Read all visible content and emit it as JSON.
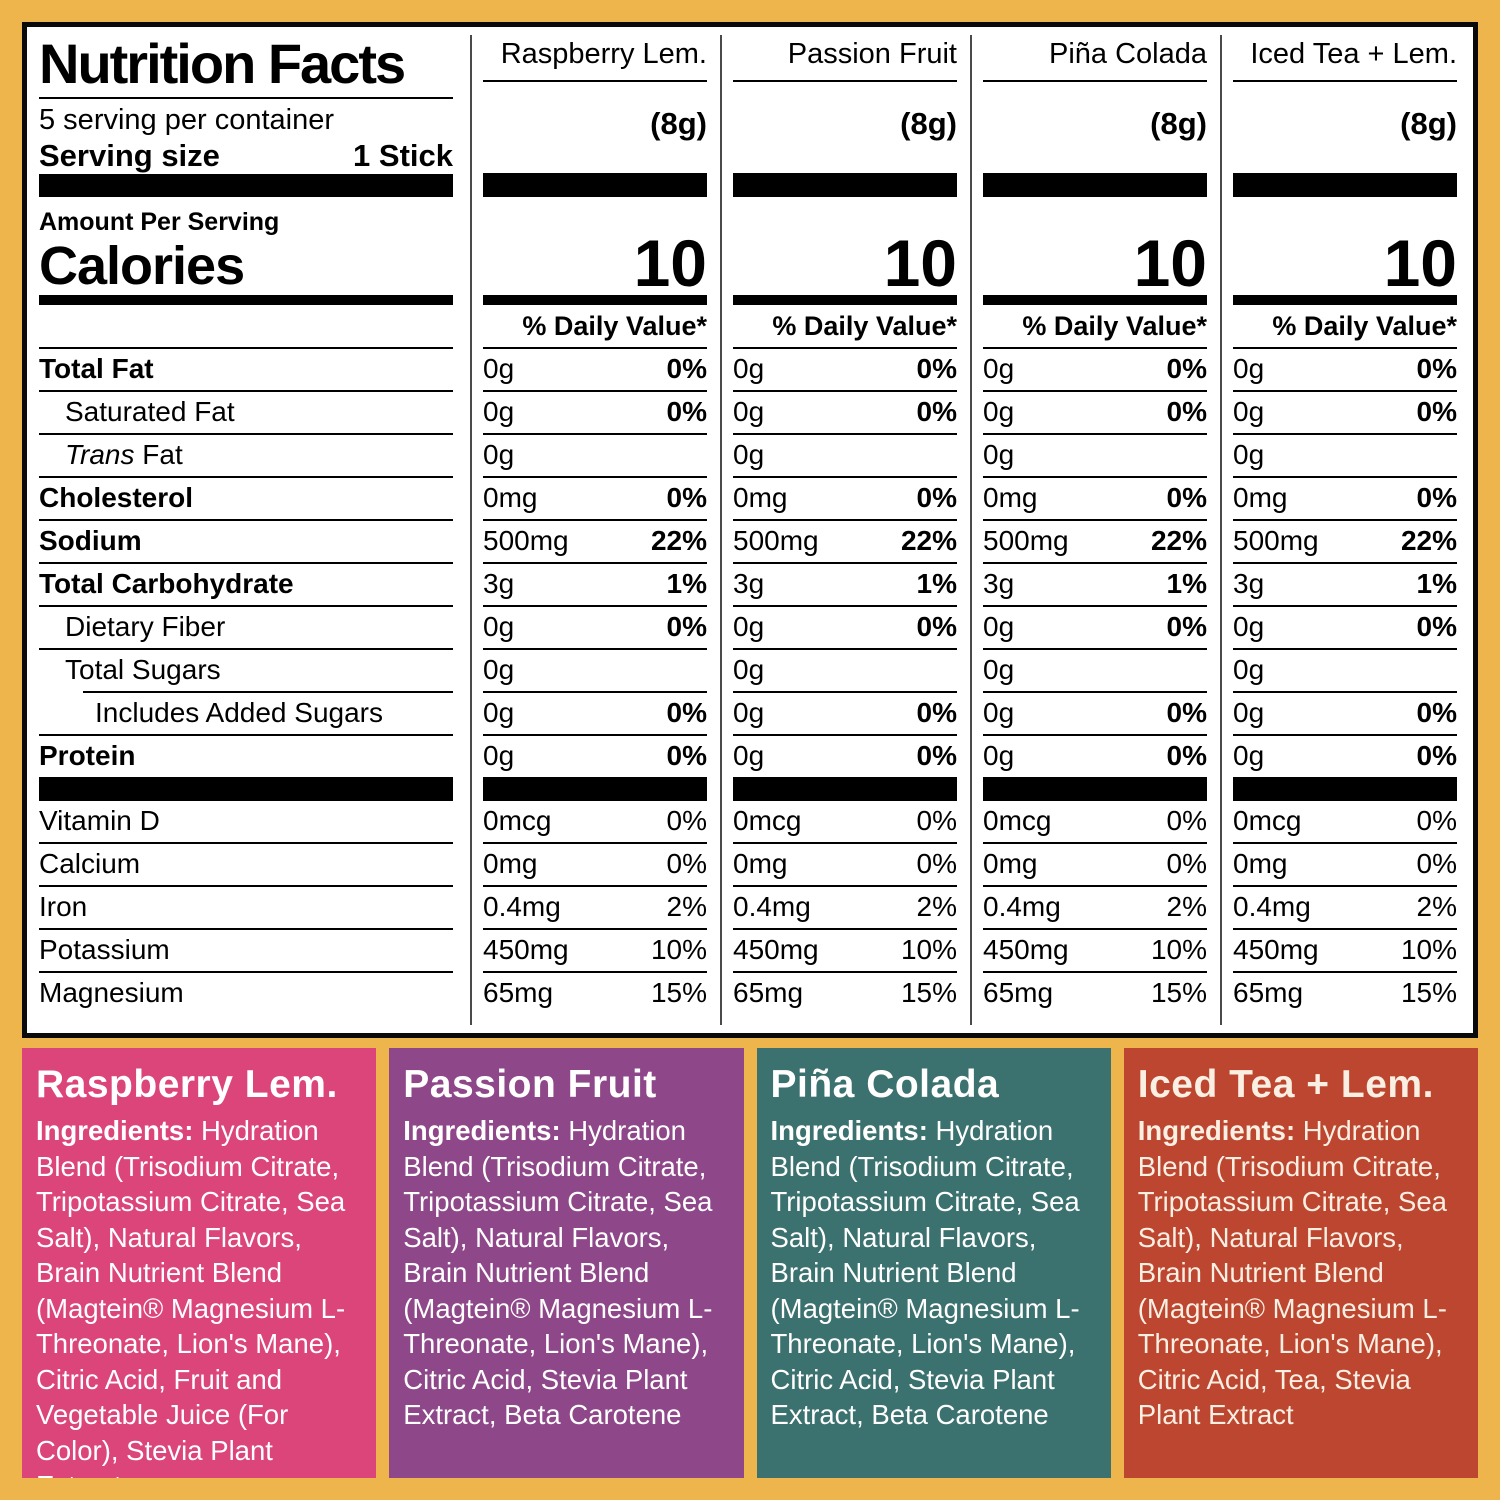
{
  "frame": {
    "background": "#EDB54C"
  },
  "nutrition_facts": {
    "title": "Nutrition Facts",
    "servings_per_container": "5 serving per container",
    "serving_size_label": "Serving size",
    "serving_size_value": "1 Stick",
    "amount_per_serving": "Amount Per Serving",
    "calories_label": "Calories",
    "daily_value_header": "% Daily Value*",
    "columns": [
      {
        "flavor": "Raspberry Lem.",
        "serving_weight": "(8g)",
        "calories": "10"
      },
      {
        "flavor": "Passion Fruit",
        "serving_weight": "(8g)",
        "calories": "10"
      },
      {
        "flavor": "Piña Colada",
        "serving_weight": "(8g)",
        "calories": "10"
      },
      {
        "flavor": "Iced Tea + Lem.",
        "serving_weight": "(8g)",
        "calories": "10"
      }
    ],
    "rows": [
      {
        "label": "Total Fat",
        "bold": true,
        "indent": 0,
        "amount": "0g",
        "dv": "0%"
      },
      {
        "label": "Saturated Fat",
        "bold": false,
        "indent": 1,
        "amount": "0g",
        "dv": "0%"
      },
      {
        "label": " Fat",
        "italic_prefix": "Trans",
        "bold": false,
        "indent": 1,
        "amount": "0g",
        "dv": ""
      },
      {
        "label": "Cholesterol",
        "bold": true,
        "indent": 0,
        "amount": "0mg",
        "dv": "0%"
      },
      {
        "label": "Sodium",
        "bold": true,
        "indent": 0,
        "amount": "500mg",
        "dv": "22%"
      },
      {
        "label": "Total Carbohydrate",
        "bold": true,
        "indent": 0,
        "amount": "3g",
        "dv": "1%"
      },
      {
        "label": "Dietary Fiber",
        "bold": false,
        "indent": 1,
        "amount": "0g",
        "dv": "0%"
      },
      {
        "label": "Total Sugars",
        "bold": false,
        "indent": 1,
        "amount": "0g",
        "dv": "",
        "rule_inset": true
      },
      {
        "label": "Includes Added Sugars",
        "bold": false,
        "indent": 2,
        "amount": "0g",
        "dv": "0%"
      },
      {
        "label": "Protein",
        "bold": true,
        "indent": 0,
        "amount": "0g",
        "dv": "0%"
      }
    ],
    "vitamin_rows": [
      {
        "label": "Vitamin D",
        "amount": "0mcg",
        "dv": "0%"
      },
      {
        "label": "Calcium",
        "amount": "0mg",
        "dv": "0%"
      },
      {
        "label": "Iron",
        "amount": "0.4mg",
        "dv": "2%"
      },
      {
        "label": "Potassium",
        "amount": "450mg",
        "dv": "10%"
      },
      {
        "label": "Magnesium",
        "amount": "65mg",
        "dv": "15%"
      }
    ]
  },
  "panels": [
    {
      "name": "Raspberry Lem.",
      "color": "#DB4579",
      "text_color": "#FFFFFF",
      "ingredients_label": "Ingredients:",
      "ingredients": " Hydration Blend (Trisodium Citrate, Tripotassium Citrate, Sea Salt), Natural Flavors, Brain Nutrient Blend (Magtein® Magnesium L-Threonate, Lion's Mane), Citric Acid, Fruit and Vegetable Juice (For Color), Stevia Plant Extract"
    },
    {
      "name": "Passion Fruit",
      "color": "#8E4789",
      "text_color": "#FFFFFF",
      "ingredients_label": "Ingredients:",
      "ingredients": " Hydration Blend (Trisodium Citrate, Tripotassium Citrate, Sea Salt), Natural Flavors, Brain Nutrient Blend (Magtein® Magnesium L-Threonate, Lion's Mane), Citric Acid, Stevia Plant Extract, Beta Carotene"
    },
    {
      "name": "Piña Colada",
      "color": "#3B716E",
      "text_color": "#FFFFFF",
      "ingredients_label": "Ingredients:",
      "ingredients": " Hydration Blend (Trisodium Citrate, Tripotassium Citrate, Sea Salt), Natural Flavors, Brain Nutrient Blend (Magtein® Magnesium L-Threonate, Lion's Mane), Citric Acid, Stevia Plant Extract, Beta Carotene"
    },
    {
      "name": "Iced Tea + Lem.",
      "color": "#BC4630",
      "text_color": "#F9EFE2",
      "ingredients_label": "Ingredients:",
      "ingredients": " Hydration Blend (Trisodium Citrate, Tripotassium Citrate, Sea Salt), Natural Flavors, Brain Nutrient Blend (Magtein® Magnesium L-Threonate, Lion's Mane), Citric Acid, Tea, Stevia Plant Extract"
    }
  ]
}
